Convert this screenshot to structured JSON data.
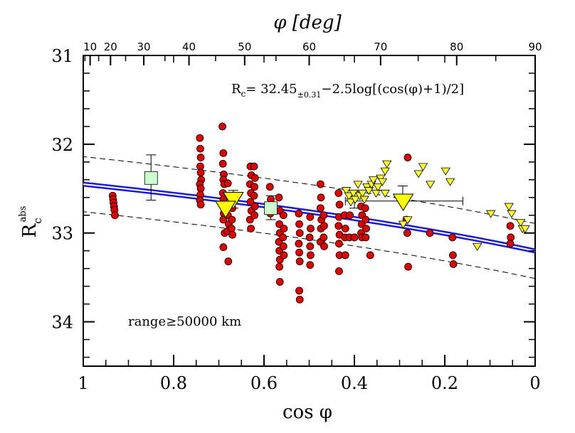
{
  "chart_data": {
    "type": "scatter",
    "title": "",
    "xlabel": "cos φ",
    "xlabel_top": "φ [deg]",
    "ylabel": "R",
    "ylabel_sub": "c",
    "ylabel_sup": "abs",
    "xlim": [
      1,
      0
    ],
    "ylim": [
      31,
      34.5
    ],
    "y_inverted": true,
    "grid": false,
    "x_ticks": [
      1,
      0.8,
      0.6,
      0.4,
      0.2,
      0
    ],
    "x_tick_labels": [
      "1",
      "0.8",
      "0.6",
      "0.4",
      "0.2",
      "0"
    ],
    "y_ticks": [
      31,
      32,
      33,
      34
    ],
    "y_tick_labels": [
      "31",
      "32",
      "33",
      "34"
    ],
    "top_ticks": [
      10,
      20,
      30,
      40,
      50,
      60,
      70,
      80,
      90
    ],
    "top_tick_labels": [
      "10",
      "20",
      "30",
      "40",
      "50",
      "60",
      "70",
      "80",
      "90"
    ],
    "annotations": {
      "formula_prefix": "R",
      "formula_sub_c": "c",
      "formula_eq": "=  32.45",
      "formula_err": "±0.31",
      "formula_rest": "−2.5log[(cos(φ)+1)/2]",
      "range_text": "range≥50000 km"
    },
    "fit": {
      "a": 32.45,
      "a_err": 0.31,
      "b": -2.5,
      "color": "#1a1ad8"
    },
    "series": [
      {
        "marker": "circle",
        "color": "#dd0000",
        "points": [
          [
            0.935,
            32.58
          ],
          [
            0.934,
            32.62
          ],
          [
            0.933,
            32.66
          ],
          [
            0.932,
            32.7
          ],
          [
            0.931,
            32.74
          ],
          [
            0.93,
            32.8
          ],
          [
            0.742,
            31.93
          ],
          [
            0.741,
            32.05
          ],
          [
            0.74,
            32.15
          ],
          [
            0.741,
            32.25
          ],
          [
            0.74,
            32.32
          ],
          [
            0.739,
            32.4
          ],
          [
            0.742,
            32.45
          ],
          [
            0.74,
            32.5
          ],
          [
            0.741,
            32.57
          ],
          [
            0.742,
            32.63
          ],
          [
            0.74,
            32.68
          ],
          [
            0.692,
            31.8
          ],
          [
            0.69,
            32.1
          ],
          [
            0.691,
            32.22
          ],
          [
            0.689,
            32.34
          ],
          [
            0.69,
            32.4
          ],
          [
            0.688,
            32.45
          ],
          [
            0.691,
            32.55
          ],
          [
            0.69,
            32.62
          ],
          [
            0.689,
            32.78
          ],
          [
            0.69,
            32.85
          ],
          [
            0.687,
            33.0
          ],
          [
            0.69,
            33.16
          ],
          [
            0.68,
            32.44
          ],
          [
            0.678,
            32.58
          ],
          [
            0.679,
            32.7
          ],
          [
            0.68,
            32.8
          ],
          [
            0.678,
            32.9
          ],
          [
            0.681,
            32.98
          ],
          [
            0.679,
            33.32
          ],
          [
            0.672,
            32.62
          ],
          [
            0.67,
            32.72
          ],
          [
            0.671,
            32.85
          ],
          [
            0.672,
            32.95
          ],
          [
            0.67,
            33.02
          ],
          [
            0.63,
            32.25
          ],
          [
            0.628,
            32.35
          ],
          [
            0.631,
            32.45
          ],
          [
            0.629,
            32.55
          ],
          [
            0.63,
            32.65
          ],
          [
            0.628,
            32.75
          ],
          [
            0.631,
            32.85
          ],
          [
            0.629,
            32.95
          ],
          [
            0.622,
            32.25
          ],
          [
            0.62,
            32.38
          ],
          [
            0.621,
            32.48
          ],
          [
            0.622,
            32.58
          ],
          [
            0.62,
            32.7
          ],
          [
            0.621,
            32.8
          ],
          [
            0.587,
            32.48
          ],
          [
            0.585,
            32.62
          ],
          [
            0.586,
            32.78
          ],
          [
            0.567,
            32.6
          ],
          [
            0.565,
            32.75
          ],
          [
            0.566,
            32.9
          ],
          [
            0.565,
            33.0
          ],
          [
            0.567,
            33.1
          ],
          [
            0.566,
            33.2
          ],
          [
            0.565,
            33.3
          ],
          [
            0.566,
            33.38
          ],
          [
            0.565,
            33.55
          ],
          [
            0.557,
            32.8
          ],
          [
            0.556,
            32.95
          ],
          [
            0.558,
            33.05
          ],
          [
            0.557,
            33.15
          ],
          [
            0.556,
            33.25
          ],
          [
            0.523,
            32.78
          ],
          [
            0.522,
            32.9
          ],
          [
            0.521,
            33.0
          ],
          [
            0.523,
            33.12
          ],
          [
            0.522,
            33.22
          ],
          [
            0.521,
            33.32
          ],
          [
            0.522,
            33.65
          ],
          [
            0.521,
            33.75
          ],
          [
            0.498,
            32.82
          ],
          [
            0.497,
            32.95
          ],
          [
            0.499,
            33.05
          ],
          [
            0.498,
            33.15
          ],
          [
            0.497,
            33.25
          ],
          [
            0.498,
            33.36
          ],
          [
            0.475,
            32.45
          ],
          [
            0.474,
            32.6
          ],
          [
            0.475,
            32.72
          ],
          [
            0.473,
            32.85
          ],
          [
            0.474,
            32.95
          ],
          [
            0.475,
            33.1
          ],
          [
            0.468,
            32.8
          ],
          [
            0.467,
            32.92
          ],
          [
            0.468,
            33.05
          ],
          [
            0.467,
            33.15
          ],
          [
            0.435,
            32.55
          ],
          [
            0.433,
            32.68
          ],
          [
            0.434,
            32.82
          ],
          [
            0.435,
            32.92
          ],
          [
            0.433,
            33.02
          ],
          [
            0.434,
            33.12
          ],
          [
            0.433,
            33.25
          ],
          [
            0.434,
            33.43
          ],
          [
            0.422,
            32.8
          ],
          [
            0.42,
            32.95
          ],
          [
            0.421,
            33.05
          ],
          [
            0.42,
            33.25
          ],
          [
            0.41,
            32.8
          ],
          [
            0.411,
            33.05
          ],
          [
            0.4,
            33.05
          ],
          [
            0.385,
            32.7
          ],
          [
            0.383,
            32.8
          ],
          [
            0.384,
            32.9
          ],
          [
            0.385,
            33.0
          ],
          [
            0.383,
            33.05
          ],
          [
            0.376,
            32.72
          ],
          [
            0.375,
            32.85
          ],
          [
            0.374,
            32.95
          ],
          [
            0.375,
            33.05
          ],
          [
            0.365,
            33.25
          ],
          [
            0.282,
            32.15
          ],
          [
            0.285,
            32.85
          ],
          [
            0.283,
            33.0
          ],
          [
            0.281,
            33.38
          ],
          [
            0.233,
            33.0
          ],
          [
            0.183,
            33.05
          ],
          [
            0.182,
            33.25
          ],
          [
            0.181,
            33.35
          ],
          [
            0.055,
            32.92
          ],
          [
            0.054,
            33.05
          ],
          [
            0.055,
            33.12
          ]
        ]
      },
      {
        "marker": "triangle-down",
        "color": "#ffff33",
        "points": [
          [
            0.418,
            32.52
          ],
          [
            0.412,
            32.58
          ],
          [
            0.408,
            32.65
          ],
          [
            0.402,
            32.55
          ],
          [
            0.398,
            32.62
          ],
          [
            0.392,
            32.45
          ],
          [
            0.388,
            32.58
          ],
          [
            0.382,
            32.55
          ],
          [
            0.378,
            32.62
          ],
          [
            0.372,
            32.48
          ],
          [
            0.368,
            32.52
          ],
          [
            0.362,
            32.45
          ],
          [
            0.358,
            32.4
          ],
          [
            0.352,
            32.55
          ],
          [
            0.348,
            32.48
          ],
          [
            0.342,
            32.38
          ],
          [
            0.338,
            32.42
          ],
          [
            0.332,
            32.3
          ],
          [
            0.328,
            32.22
          ],
          [
            0.332,
            32.55
          ],
          [
            0.292,
            32.9
          ],
          [
            0.282,
            32.85
          ],
          [
            0.258,
            32.33
          ],
          [
            0.248,
            32.25
          ],
          [
            0.232,
            32.45
          ],
          [
            0.198,
            32.3
          ],
          [
            0.188,
            32.42
          ],
          [
            0.128,
            33.15
          ],
          [
            0.098,
            32.78
          ],
          [
            0.058,
            32.7
          ],
          [
            0.052,
            32.78
          ],
          [
            0.032,
            32.88
          ],
          [
            0.028,
            32.95
          ],
          [
            0.022,
            32.95
          ]
        ]
      },
      {
        "marker": "triangle-down-large",
        "color": "#ffff00",
        "points": [
          [
            0.668,
            32.62
          ],
          [
            0.685,
            32.72
          ],
          [
            0.292,
            32.64
          ]
        ],
        "error_bars": [
          [
            0.668,
            32.52,
            32.72
          ]
        ],
        "xerr": [
          [
            0.292,
            0.25,
            0.32
          ]
        ]
      },
      {
        "marker": "square",
        "color": "#ccffcc",
        "points": [
          [
            0.85,
            32.38
          ],
          [
            0.585,
            32.72
          ]
        ],
        "error_bars": [
          [
            0.85,
            32.12,
            32.63
          ],
          [
            0.585,
            32.58,
            32.85
          ]
        ]
      }
    ],
    "extra_error_bars": [
      {
        "x": 0.293,
        "y1": 32.47,
        "y2": 32.64
      },
      {
        "x": 0.4,
        "y1": 32.52,
        "y2": 32.72
      },
      {
        "x": 0.4,
        "xlo": 0.42,
        "xhi": 0.16,
        "y": 32.64
      }
    ]
  }
}
